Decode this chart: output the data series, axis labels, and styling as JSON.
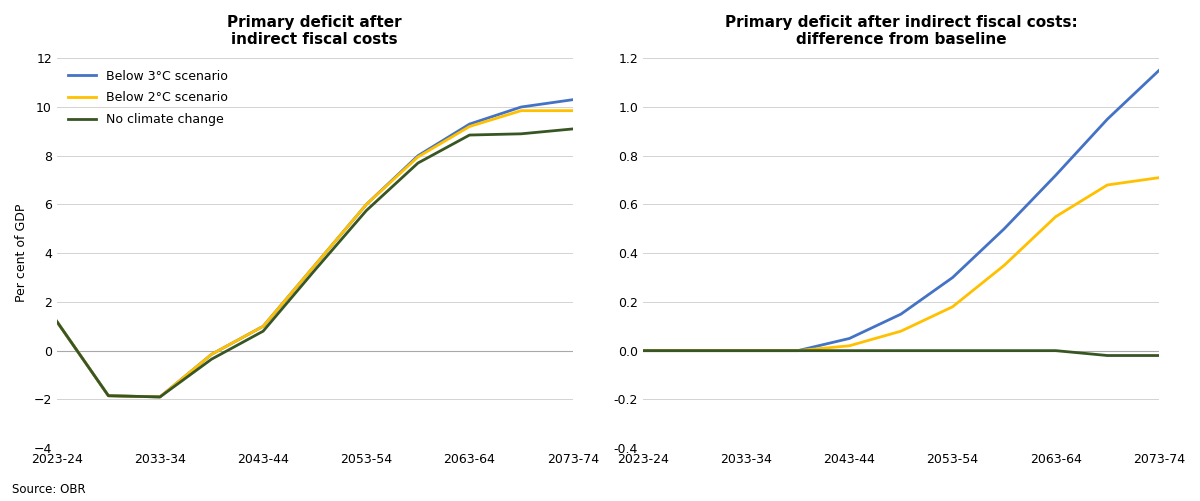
{
  "title1": "Primary deficit after\nindirect fiscal costs",
  "title2": "Primary deficit after indirect fiscal costs:\ndifference from baseline",
  "ylabel1": "Per cent of GDP",
  "source": "Source: OBR",
  "x_labels": [
    "2023-24",
    "2033-34",
    "2043-44",
    "2053-54",
    "2063-64",
    "2073-74"
  ],
  "x_ticks": [
    0,
    10,
    20,
    30,
    40,
    50
  ],
  "colors": {
    "blue": "#4472C4",
    "gold": "#FFC000",
    "green": "#375623"
  },
  "legend_labels": [
    "Below 3°C scenario",
    "Below 2°C scenario",
    "No climate change"
  ],
  "chart1": {
    "ylim": [
      -4,
      12
    ],
    "yticks": [
      -4,
      -2,
      0,
      2,
      4,
      6,
      8,
      10,
      12
    ],
    "x": [
      0,
      5,
      10,
      15,
      20,
      25,
      30,
      35,
      40,
      45,
      50
    ],
    "below3": [
      1.2,
      -1.85,
      -1.9,
      -0.15,
      1.0,
      3.5,
      6.0,
      8.0,
      9.3,
      10.0,
      10.3
    ],
    "below2": [
      1.2,
      -1.85,
      -1.9,
      -0.15,
      1.0,
      3.5,
      6.0,
      7.95,
      9.2,
      9.85,
      9.85
    ],
    "noclimate": [
      1.2,
      -1.85,
      -1.9,
      -0.35,
      0.8,
      3.3,
      5.75,
      7.7,
      8.85,
      8.9,
      9.1
    ]
  },
  "chart2": {
    "ylim": [
      -0.4,
      1.2
    ],
    "yticks": [
      -0.4,
      -0.2,
      0.0,
      0.2,
      0.4,
      0.6,
      0.8,
      1.0,
      1.2
    ],
    "x": [
      0,
      5,
      10,
      15,
      20,
      25,
      30,
      35,
      40,
      45,
      50
    ],
    "below3": [
      0.0,
      0.0,
      0.0,
      0.0,
      0.05,
      0.15,
      0.3,
      0.5,
      0.72,
      0.95,
      1.15
    ],
    "below2": [
      0.0,
      0.0,
      0.0,
      0.0,
      0.02,
      0.08,
      0.18,
      0.35,
      0.55,
      0.68,
      0.71
    ],
    "noclimate": [
      0.0,
      0.0,
      0.0,
      0.0,
      0.0,
      0.0,
      0.0,
      0.0,
      0.0,
      -0.02,
      -0.02
    ]
  }
}
